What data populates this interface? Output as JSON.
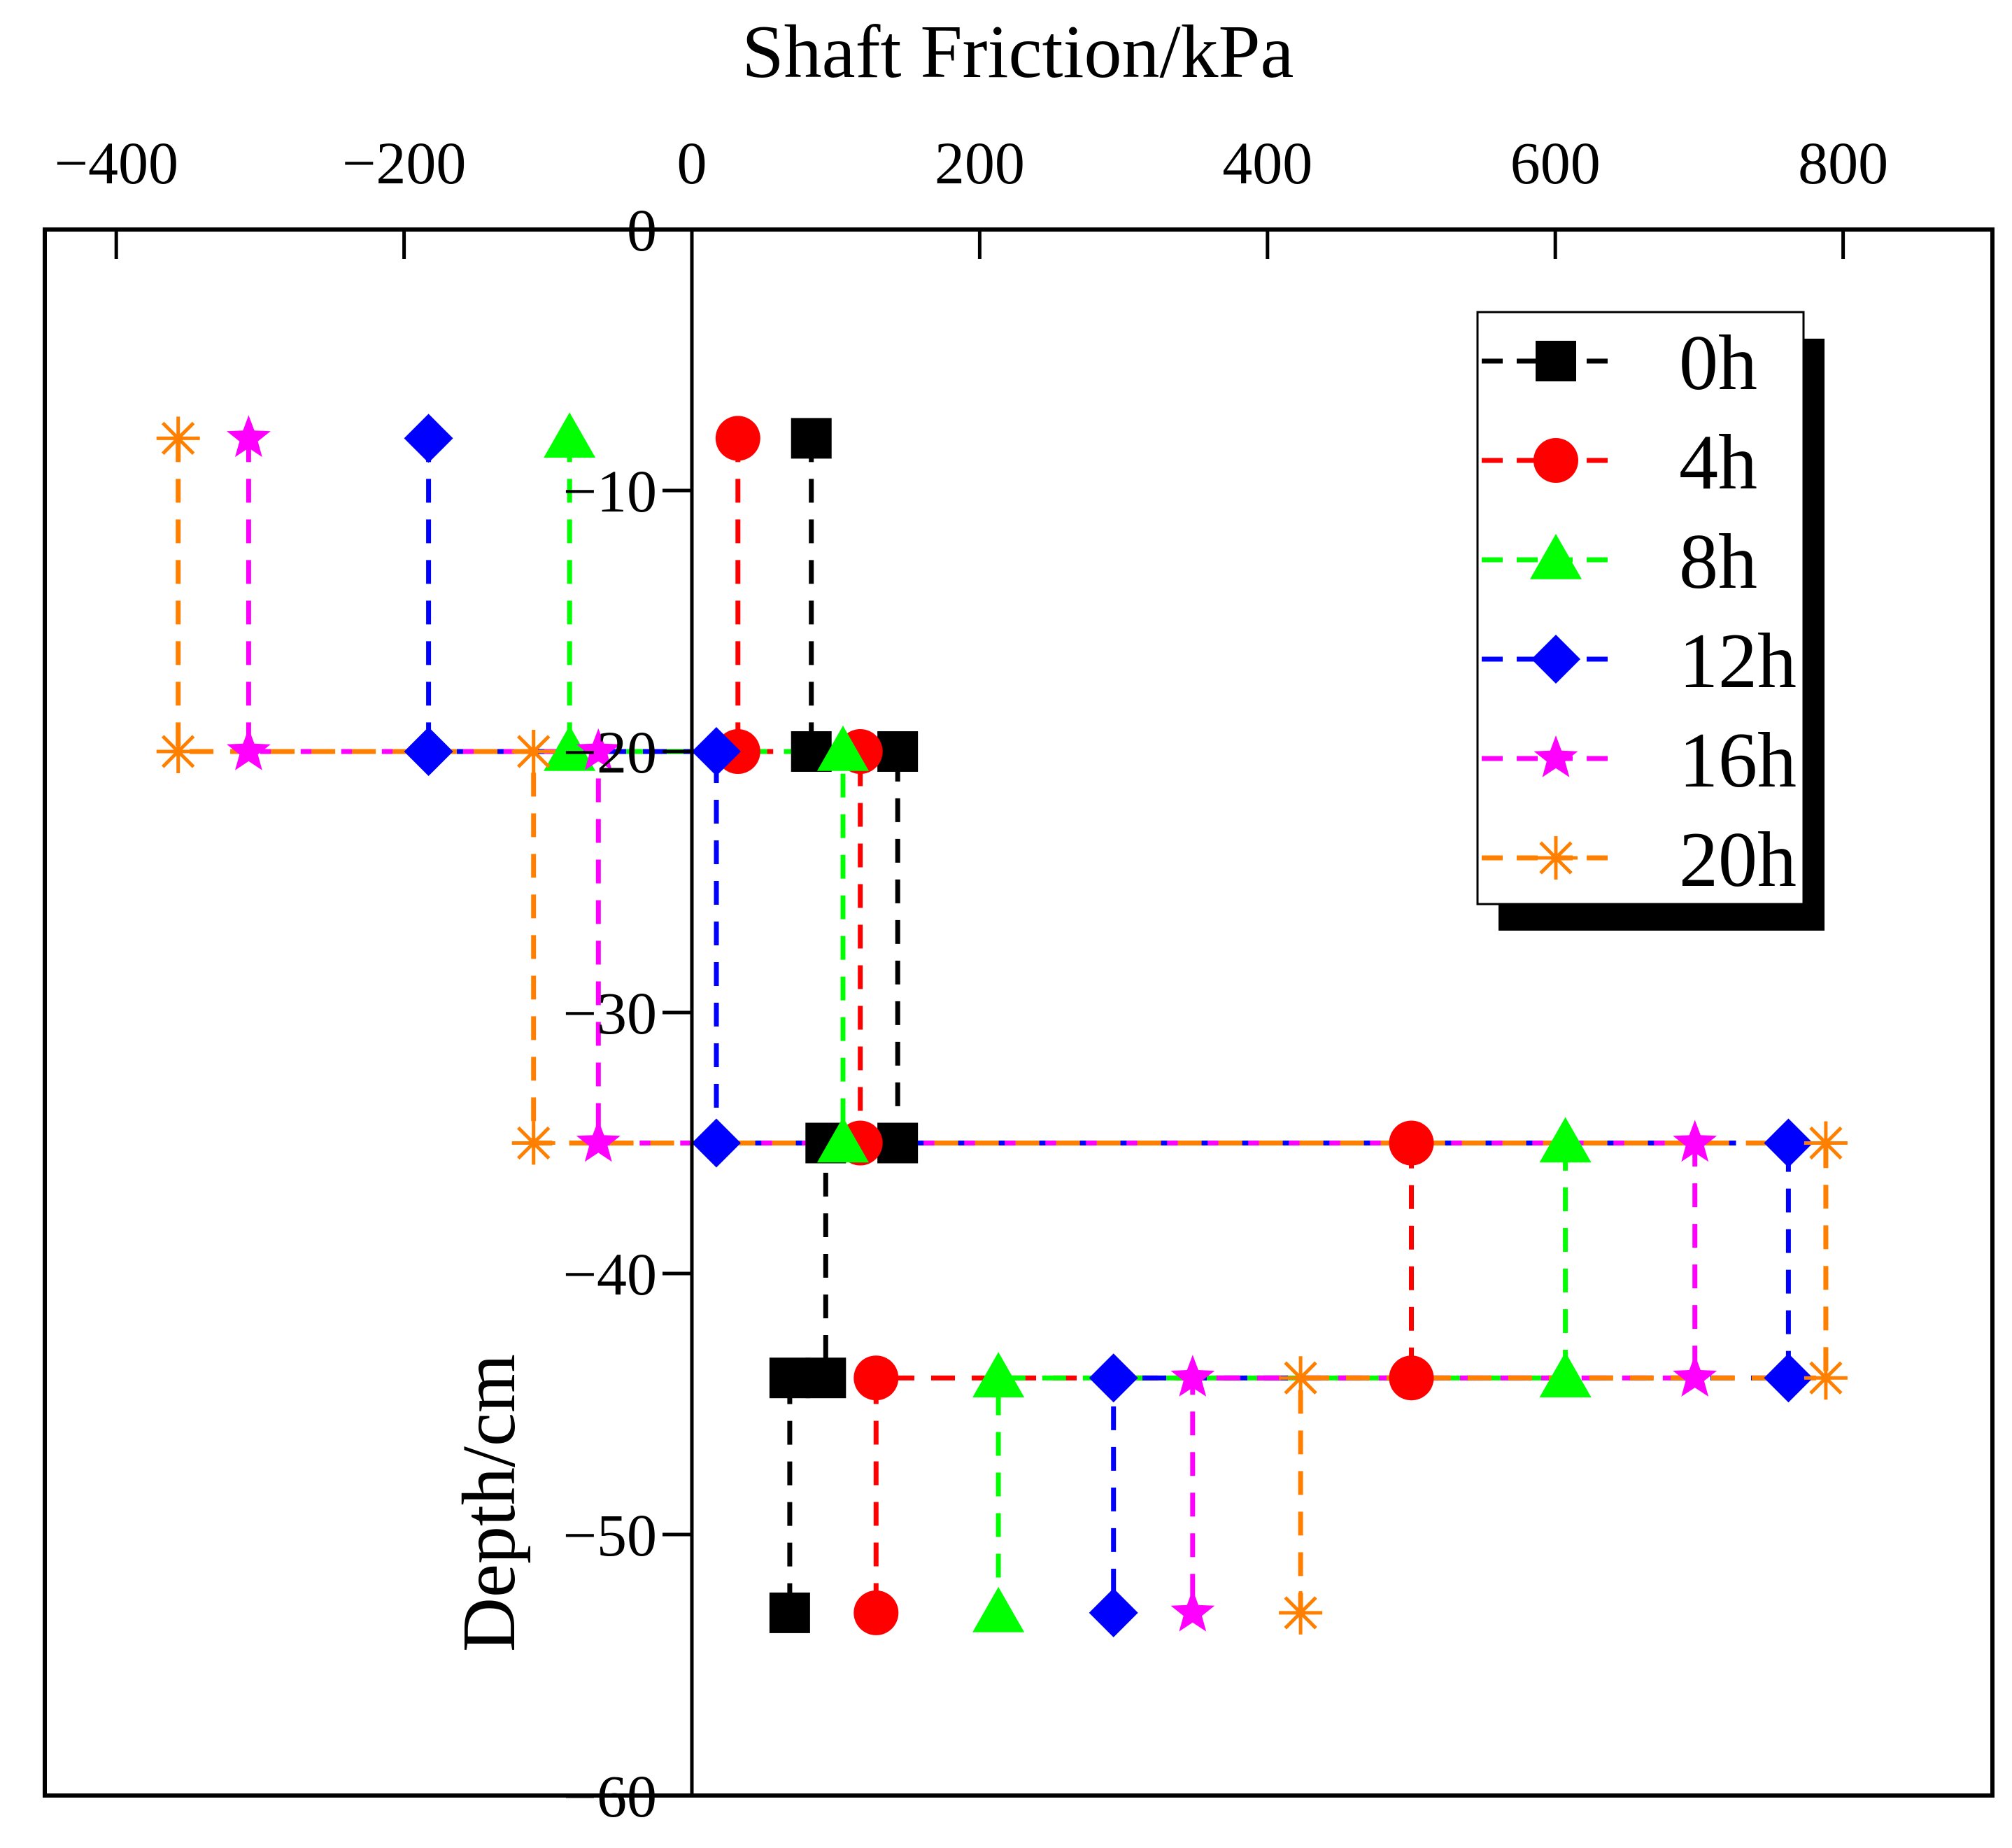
{
  "chart_data": {
    "type": "line",
    "title": "Shaft Friction/kPa",
    "xlabel": "Shaft Friction/kPa",
    "ylabel": "Depth/cm",
    "xlim": [
      -400,
      900
    ],
    "ylim": [
      -60,
      0
    ],
    "x_ticks": [
      -400,
      -200,
      0,
      200,
      400,
      600,
      800
    ],
    "x_tick_labels": [
      "−400",
      "−200",
      "0",
      "200",
      "400",
      "600",
      "800"
    ],
    "y_ticks": [
      0,
      -10,
      -20,
      -30,
      -40,
      -50,
      -60
    ],
    "y_tick_labels": [
      "0",
      "−10",
      "−20",
      "−30",
      "−40",
      "−50",
      "−60"
    ],
    "legend_position": "top-right",
    "series": [
      {
        "name": "0h",
        "color": "#000000",
        "marker": "square",
        "x": [
          83,
          83,
          143,
          143,
          93,
          93,
          68,
          68
        ],
        "y": [
          -8,
          -20,
          -20,
          -35,
          -35,
          -44,
          -44,
          -53
        ]
      },
      {
        "name": "4h",
        "color": "#ff0000",
        "marker": "circle",
        "x": [
          32,
          32,
          117,
          117,
          500,
          500,
          128,
          128
        ],
        "y": [
          -8,
          -20,
          -20,
          -35,
          -35,
          -44,
          -44,
          -53
        ]
      },
      {
        "name": "8h",
        "color": "#00ff00",
        "marker": "triangle",
        "x": [
          -85,
          -85,
          105,
          105,
          607,
          607,
          213,
          213
        ],
        "y": [
          -8,
          -20,
          -20,
          -35,
          -35,
          -44,
          -44,
          -53
        ]
      },
      {
        "name": "12h",
        "color": "#0000ff",
        "marker": "diamond",
        "x": [
          -183,
          -183,
          17,
          17,
          762,
          762,
          293,
          293
        ],
        "y": [
          -8,
          -20,
          -20,
          -35,
          -35,
          -44,
          -44,
          -53
        ]
      },
      {
        "name": "16h",
        "color": "#ff00ff",
        "marker": "star",
        "x": [
          -308,
          -308,
          -65,
          -65,
          697,
          697,
          348,
          348
        ],
        "y": [
          -8,
          -20,
          -20,
          -35,
          -35,
          -44,
          -44,
          -53
        ]
      },
      {
        "name": "20h",
        "color": "#ff8000",
        "marker": "asterisk",
        "x": [
          -357,
          -357,
          -110,
          -110,
          788,
          788,
          423,
          423
        ],
        "y": [
          -8,
          -20,
          -20,
          -35,
          -35,
          -44,
          -44,
          -53
        ]
      }
    ]
  }
}
